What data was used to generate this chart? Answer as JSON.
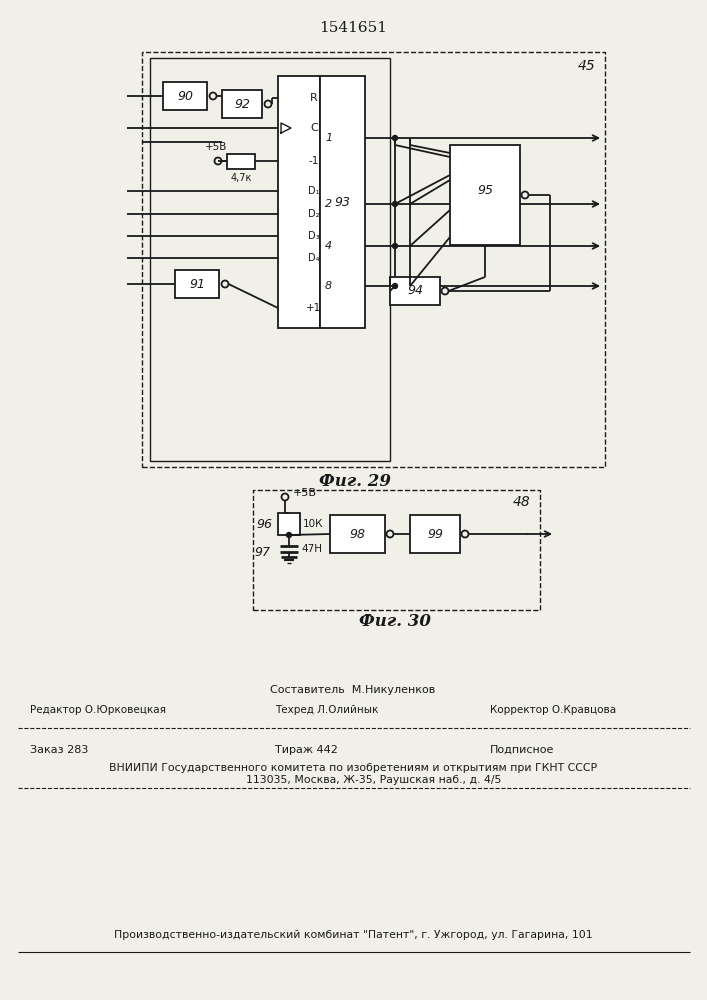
{
  "title": "1541651",
  "fig29_label": "Фиг. 29",
  "fig30_label": "Фиг. 30",
  "bg_color": "#f0efe8",
  "line_color": "#1a1a1a",
  "box_bg": "#ffffff"
}
